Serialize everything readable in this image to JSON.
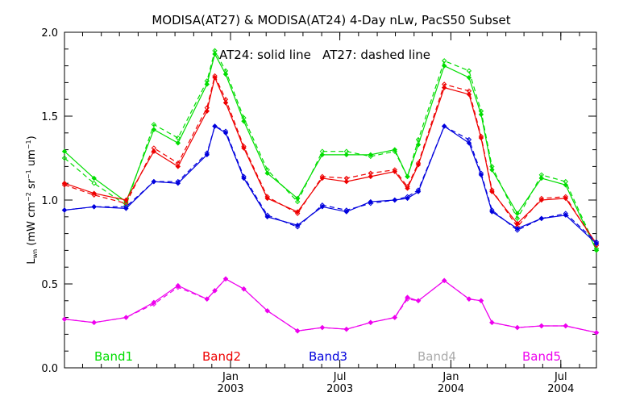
{
  "chart_data": {
    "type": "line",
    "title": "MODISA(AT27) & MODISA(AT24) 4-Day nLw, PacS50 Subset",
    "annotation": "AT24: solid line   AT27: dashed line",
    "ylabel_main": "L",
    "ylabel_sub": "wn",
    "ylabel_units": " (mW cm",
    "ylabel_exp1": "−2",
    "ylabel_mid": " sr",
    "ylabel_exp2": "−1",
    "ylabel_um": " um",
    "ylabel_exp3": "−1",
    "ylabel_close": ")",
    "ylim": [
      0.0,
      2.0
    ],
    "yticks": [
      "0.0",
      "0.5",
      "1.0",
      "1.5",
      "2.0"
    ],
    "xlim": [
      "2002-04-01",
      "2004-08-29"
    ],
    "xticks": [
      {
        "date": "2003-01-01",
        "month": "Jan",
        "year": "2003"
      },
      {
        "date": "2003-07-01",
        "month": "Jul",
        "year": "2003"
      },
      {
        "date": "2004-01-01",
        "month": "Jan",
        "year": "2004"
      },
      {
        "date": "2004-07-01",
        "month": "Jul",
        "year": "2004"
      }
    ],
    "grid": false,
    "legend_position": "bottom",
    "x": [
      "2002-04-01",
      "2002-05-20",
      "2002-07-12",
      "2002-08-27",
      "2002-10-06",
      "2002-11-23",
      "2002-12-24",
      "2003-01-23",
      "2003-03-03",
      "2003-04-22",
      "2003-06-02",
      "2003-07-12",
      "2003-08-21",
      "2003-09-30",
      "2003-11-08",
      "2003-12-21",
      "2004-01-31",
      "2004-03-09",
      "2004-04-20",
      "2004-05-30",
      "2004-07-09",
      "2004-08-29"
    ],
    "series": [
      {
        "name": "Band1",
        "color": "#00dd00",
        "solid": [
          1.29,
          1.13,
          0.99,
          1.42,
          1.34,
          1.69,
          1.87,
          1.75,
          1.47,
          1.16,
          1.01,
          1.27,
          1.27,
          1.27,
          1.3,
          1.14,
          1.33,
          1.8,
          1.73,
          1.51,
          1.18,
          0.92,
          1.13,
          1.09,
          0.7
        ],
        "dashed": [
          1.25,
          1.1,
          0.97,
          1.45,
          1.37,
          1.71,
          1.89,
          1.77,
          1.49,
          1.18,
          0.99,
          1.29,
          1.29,
          1.26,
          1.29,
          1.14,
          1.36,
          1.83,
          1.77,
          1.53,
          1.2,
          0.89,
          1.15,
          1.11,
          0.71
        ]
      },
      {
        "name": "Band2",
        "color": "#ee0000",
        "solid": [
          1.1,
          1.04,
          1.0,
          1.29,
          1.2,
          1.53,
          1.73,
          1.58,
          1.31,
          1.01,
          0.93,
          1.13,
          1.11,
          1.14,
          1.17,
          1.07,
          1.21,
          1.67,
          1.63,
          1.37,
          1.05,
          0.86,
          1.0,
          1.01,
          0.74
        ],
        "dashed": [
          1.09,
          1.03,
          0.98,
          1.31,
          1.22,
          1.55,
          1.74,
          1.6,
          1.32,
          1.02,
          0.92,
          1.14,
          1.13,
          1.16,
          1.18,
          1.08,
          1.22,
          1.69,
          1.65,
          1.38,
          1.06,
          0.84,
          1.01,
          1.02,
          0.73
        ]
      },
      {
        "name": "Band3",
        "color": "#0000dd",
        "solid": [
          0.94,
          0.96,
          0.95,
          1.11,
          1.1,
          1.27,
          1.44,
          1.4,
          1.13,
          0.9,
          0.85,
          0.96,
          0.93,
          0.99,
          1.0,
          1.01,
          1.05,
          1.44,
          1.34,
          1.15,
          0.93,
          0.83,
          0.89,
          0.91,
          0.74
        ],
        "dashed": [
          0.94,
          0.96,
          0.96,
          1.11,
          1.11,
          1.28,
          1.44,
          1.41,
          1.14,
          0.91,
          0.84,
          0.97,
          0.94,
          0.98,
          1.0,
          1.02,
          1.06,
          1.44,
          1.36,
          1.16,
          0.94,
          0.82,
          0.89,
          0.92,
          0.75
        ]
      },
      {
        "name": "Band4",
        "color": "#aaaaaa",
        "solid": [],
        "dashed": []
      },
      {
        "name": "Band5",
        "color": "#ee00ee",
        "solid": [
          0.29,
          0.27,
          0.3,
          0.39,
          0.49,
          0.41,
          0.46,
          0.53,
          0.47,
          0.34,
          0.22,
          0.24,
          0.23,
          0.27,
          0.3,
          0.42,
          0.4,
          0.52,
          0.41,
          0.4,
          0.27,
          0.24,
          0.25,
          0.25,
          0.21
        ],
        "dashed": [
          0.29,
          0.27,
          0.3,
          0.38,
          0.48,
          0.41,
          0.46,
          0.53,
          0.47,
          0.34,
          0.22,
          0.24,
          0.23,
          0.27,
          0.3,
          0.41,
          0.4,
          0.52,
          0.41,
          0.4,
          0.27,
          0.24,
          0.25,
          0.25,
          0.21
        ]
      }
    ],
    "point_dates": [
      "2002-04-01",
      "2002-05-20",
      "2002-07-12",
      "2002-08-27",
      "2002-10-06",
      "2002-11-23",
      "2002-12-24",
      "2003-01-23",
      "2003-03-03",
      "2003-04-22",
      "2003-06-02",
      "2003-07-12",
      "2003-08-21",
      "2003-09-30",
      "2003-11-08",
      "2003-12-21",
      "2004-01-31",
      "2004-03-09",
      "2004-04-20",
      "2004-05-30",
      "2004-07-09",
      "2004-08-29",
      "2002-12-06",
      "2003-10-21",
      "2004-02-20"
    ]
  }
}
